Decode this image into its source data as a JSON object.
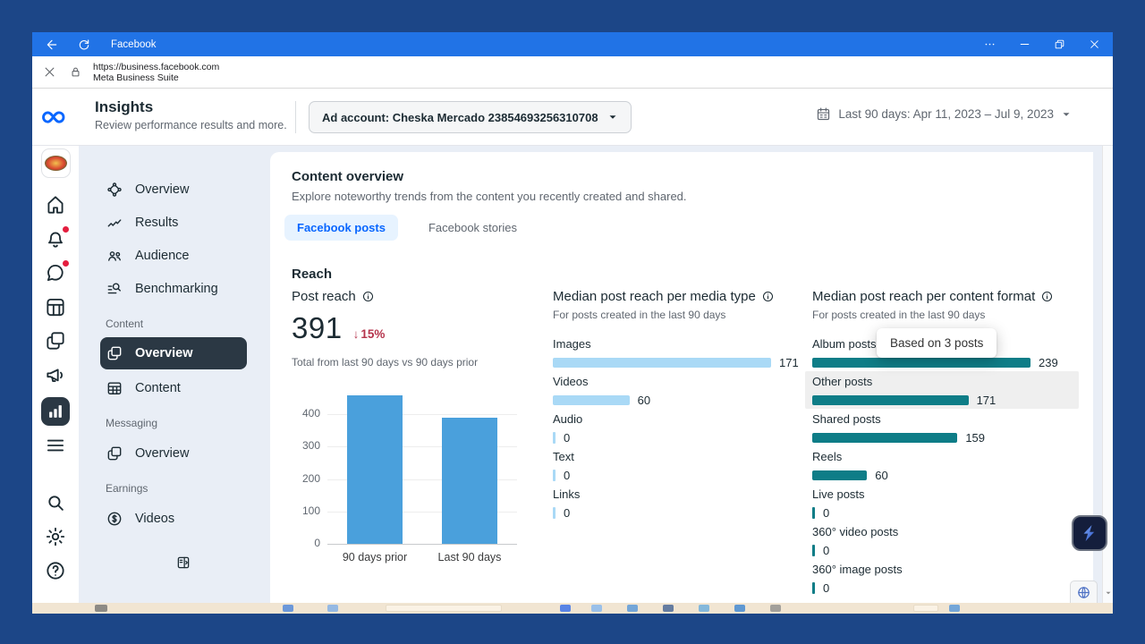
{
  "colors": {
    "frame_navy": "#1c4687",
    "titlebar_blue": "#2173e6",
    "accent_blue": "#0866ff",
    "selected_nav_bg": "#2b3844",
    "negative_red": "#b5344c",
    "bar_blue": "#4aa0dc",
    "bar_light_blue": "#a9d9f6",
    "bar_teal": "#0e7d87",
    "badge_red": "#e41e3f"
  },
  "frame": {
    "title": "Facebook",
    "url": "https://business.facebook.com",
    "site_name": "Meta Business Suite",
    "window_controls": [
      "more",
      "minimize",
      "restore",
      "close"
    ]
  },
  "header": {
    "title": "Insights",
    "subtitle": "Review performance results and more.",
    "ad_account": "Ad account: Cheska Mercado 23854693256310708",
    "date_range": "Last 90 days: Apr 11, 2023 – Jul 9, 2023",
    "calendar_icon": "calendar-icon"
  },
  "rail": {
    "items": [
      {
        "name": "business-avatar",
        "icon": "avatar",
        "badge": false,
        "active": false
      },
      {
        "name": "home",
        "icon": "home-icon",
        "badge": false,
        "active": false
      },
      {
        "name": "notifications",
        "icon": "bell-icon",
        "badge": true,
        "active": false
      },
      {
        "name": "inbox",
        "icon": "chat-icon",
        "badge": true,
        "active": false
      },
      {
        "name": "planner",
        "icon": "planner-icon",
        "badge": false,
        "active": false
      },
      {
        "name": "content",
        "icon": "pages-icon",
        "badge": false,
        "active": false
      },
      {
        "name": "ads",
        "icon": "megaphone-icon",
        "badge": false,
        "active": false
      },
      {
        "name": "insights",
        "icon": "insights-icon",
        "badge": false,
        "active": true
      },
      {
        "name": "all-tools",
        "icon": "menu-icon",
        "badge": false,
        "active": false
      },
      {
        "name": "search",
        "icon": "search-icon",
        "badge": false,
        "active": false,
        "gap_before": true
      },
      {
        "name": "settings",
        "icon": "gear-icon",
        "badge": false,
        "active": false
      },
      {
        "name": "help",
        "icon": "help-icon",
        "badge": false,
        "active": false
      }
    ]
  },
  "sidebar": {
    "sections": [
      {
        "label": "",
        "items": [
          {
            "label": "Overview",
            "icon": "overview-nodes-icon",
            "active": false
          },
          {
            "label": "Results",
            "icon": "results-icon",
            "active": false
          },
          {
            "label": "Audience",
            "icon": "audience-icon",
            "active": false
          },
          {
            "label": "Benchmarking",
            "icon": "benchmarking-icon",
            "active": false
          }
        ]
      },
      {
        "label": "Content",
        "items": [
          {
            "label": "Overview",
            "icon": "pages-icon",
            "active": true
          },
          {
            "label": "Content",
            "icon": "table-icon",
            "active": false
          }
        ]
      },
      {
        "label": "Messaging",
        "items": [
          {
            "label": "Overview",
            "icon": "pages-icon",
            "active": false
          }
        ]
      },
      {
        "label": "Earnings",
        "items": [
          {
            "label": "Videos",
            "icon": "dollar-icon",
            "active": false
          }
        ]
      }
    ]
  },
  "main": {
    "title": "Content overview",
    "subtitle": "Explore noteworthy trends from the content you recently created and shared.",
    "tabs": [
      {
        "label": "Facebook posts",
        "active": true
      },
      {
        "label": "Facebook stories",
        "active": false
      }
    ],
    "section_title": "Reach",
    "post_reach": {
      "title": "Post reach",
      "value": "391",
      "delta": "15%",
      "delta_direction": "down",
      "caption": "Total from last 90 days vs 90 days prior"
    }
  },
  "chart_data": [
    {
      "id": "post_reach_comparison",
      "type": "bar",
      "orientation": "vertical",
      "title": "Post reach",
      "categories": [
        "90 days prior",
        "Last 90 days"
      ],
      "values": [
        460,
        391
      ],
      "ylim": [
        0,
        470
      ],
      "yticks": [
        0,
        100,
        200,
        300,
        400
      ],
      "bar_color": "#4aa0dc",
      "grid": true,
      "legend": false
    },
    {
      "id": "median_post_reach_per_media_type",
      "type": "bar",
      "orientation": "horizontal",
      "title": "Median post reach per media type",
      "subtitle": "For posts created in the last 90 days",
      "categories": [
        "Images",
        "Videos",
        "Audio",
        "Text",
        "Links"
      ],
      "values": [
        171,
        60,
        0,
        0,
        0
      ],
      "xmax": 171,
      "bar_color": "#a9d9f6"
    },
    {
      "id": "median_post_reach_per_content_format",
      "type": "bar",
      "orientation": "horizontal",
      "title": "Median post reach per content format",
      "subtitle": "For posts created in the last 90 days",
      "categories": [
        "Album posts",
        "Other posts",
        "Shared posts",
        "Reels",
        "Live posts",
        "360° video posts",
        "360° image posts"
      ],
      "values": [
        239,
        171,
        159,
        60,
        0,
        0,
        0
      ],
      "xmax": 239,
      "bar_color": "#0e7d87",
      "highlighted_index": 1,
      "tooltip": {
        "text": "Based on 3 posts",
        "target_index": 0
      }
    }
  ]
}
